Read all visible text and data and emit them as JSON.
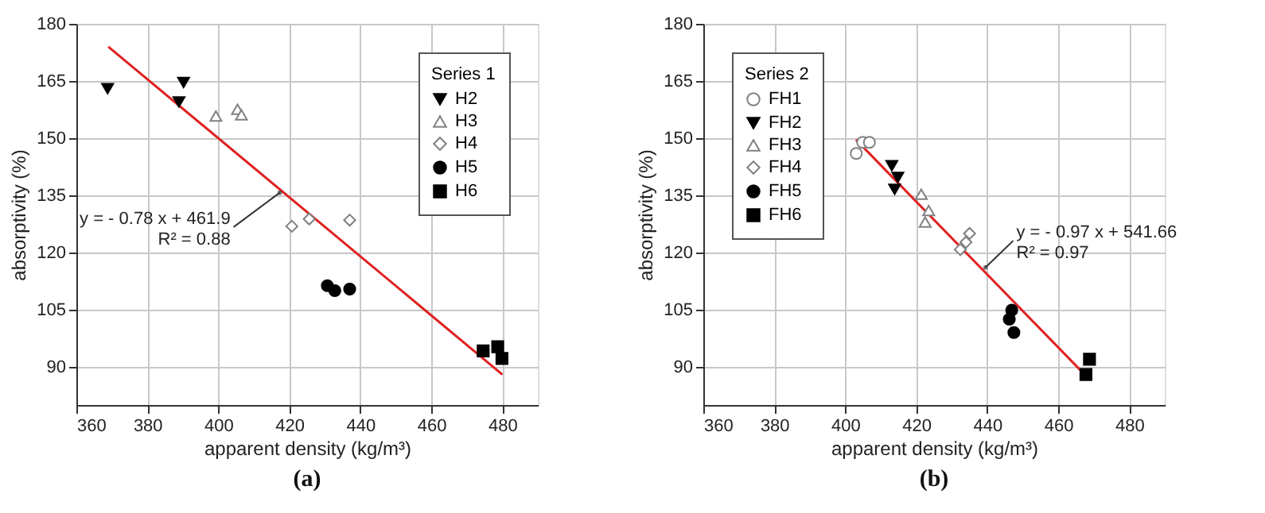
{
  "chart_data": [
    {
      "type": "scatter",
      "title": "(a)",
      "xlabel": "apparent density (kg/m³)",
      "ylabel": "absorptivity (%)",
      "legend_title": "Series 1",
      "legend": "top right",
      "grid": true,
      "xlim": [
        360,
        490
      ],
      "xticks": [
        360,
        380,
        400,
        420,
        440,
        460,
        480
      ],
      "ylim": [
        80,
        180
      ],
      "yticks": [
        90,
        105,
        120,
        135,
        150,
        165,
        180
      ],
      "series": [
        {
          "name": "H2",
          "color": "#000000",
          "marker": "triangle-down",
          "x": [
            368.8,
            390.2,
            388.9
          ],
          "values": [
            163,
            164.6,
            159.5
          ]
        },
        {
          "name": "H3",
          "color": "#808080",
          "marker": "triangle",
          "x": [
            399.3,
            405.4,
            406.5
          ],
          "values": [
            155.8,
            157.6,
            156.1
          ]
        },
        {
          "name": "H4",
          "color": "#808080",
          "marker": "diamond",
          "x": [
            420.7,
            425.6,
            437
          ],
          "values": [
            126.9,
            128.8,
            128.5
          ]
        },
        {
          "name": "H5",
          "color": "#000000",
          "marker": "circle",
          "x": [
            430.7,
            432.8,
            437
          ],
          "values": [
            111.3,
            110,
            110.4
          ]
        },
        {
          "name": "H6",
          "color": "#000000",
          "marker": "square",
          "x": [
            474.6,
            478.7,
            479.9
          ],
          "values": [
            94.2,
            95.3,
            92.2
          ]
        },
        {
          "type": "line",
          "color": "#e02020",
          "line_style": "solid",
          "x": [
            369,
            480
          ],
          "values": [
            174,
            88
          ]
        }
      ],
      "annotations": [
        {
          "text": "y = - 0.78 x + 461.9\nR² = 0.88",
          "x": 417.3,
          "y": 135.7
        }
      ]
    },
    {
      "type": "scatter",
      "title": "(b)",
      "xlabel": "apparent density (kg/m³)",
      "ylabel": "absorptivity (%)",
      "legend_title": "Series 2",
      "legend": "top left",
      "grid": true,
      "xlim": [
        360,
        490
      ],
      "xticks": [
        360,
        380,
        400,
        420,
        440,
        460,
        480
      ],
      "ylim": [
        80,
        180
      ],
      "yticks": [
        90,
        105,
        120,
        135,
        150,
        165,
        180
      ],
      "series": [
        {
          "name": "FH1",
          "color": "#808080",
          "marker": "circle",
          "x": [
            403.1,
            404.9,
            406.8
          ],
          "values": [
            146,
            148.9,
            148.9
          ]
        },
        {
          "name": "FH2",
          "color": "#000000",
          "marker": "triangle-down",
          "x": [
            413.1,
            414.8,
            413.9
          ],
          "values": [
            142.8,
            139.7,
            136.6
          ]
        },
        {
          "name": "FH3",
          "color": "#808080",
          "marker": "triangle",
          "x": [
            421.4,
            423.5,
            422.5
          ],
          "values": [
            135.3,
            131,
            128
          ]
        },
        {
          "name": "FH4",
          "color": "#808080",
          "marker": "diamond",
          "x": [
            432.4,
            434,
            435
          ],
          "values": [
            120.8,
            122.7,
            125
          ]
        },
        {
          "name": "FH5",
          "color": "#000000",
          "marker": "circle",
          "x": [
            446.9,
            446.2,
            447.5
          ],
          "values": [
            104.9,
            102.5,
            99
          ]
        },
        {
          "name": "FH6",
          "color": "#000000",
          "marker": "square",
          "x": [
            467.8,
            468.8
          ],
          "values": [
            88,
            92
          ]
        },
        {
          "type": "line",
          "color": "#e02020",
          "line_style": "solid",
          "x": [
            403,
            468.8
          ],
          "values": [
            149.6,
            86.7
          ]
        }
      ],
      "annotations": [
        {
          "text": "y = - 0.97 x + 541.66\nR² = 0.97",
          "x": 439.5,
          "y": 116.1
        }
      ]
    }
  ]
}
